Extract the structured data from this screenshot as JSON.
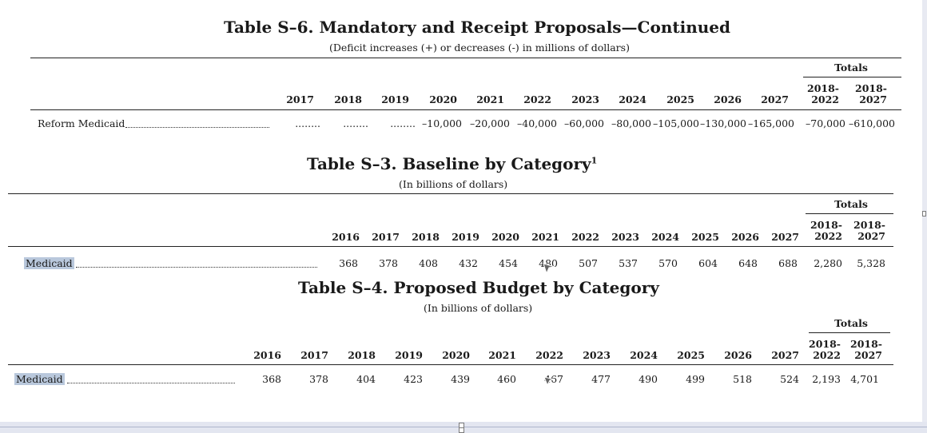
{
  "s6": {
    "title": "Table S–6.   Mandatory and Receipt Proposals—Continued",
    "subtitle": "(Deficit increases (+) or decreases (-) in millions of dollars)",
    "totals_label": "Totals",
    "years": [
      "2017",
      "2018",
      "2019",
      "2020",
      "2021",
      "2022",
      "2023",
      "2024",
      "2025",
      "2026",
      "2027"
    ],
    "totals_cols": [
      [
        "2018-",
        "2022"
      ],
      [
        "2018-",
        "2027"
      ]
    ],
    "row_label": "Reform Medicaid",
    "values": [
      "........",
      "........",
      "........",
      "–10,000",
      "–20,000",
      "–40,000",
      "–60,000",
      "–80,000",
      "–105,000",
      "–130,000",
      "–165,000",
      "–70,000",
      "–610,000"
    ]
  },
  "s3": {
    "title": "Table S–3.   Baseline by Category",
    "title_sup": "1",
    "subtitle": "(In billions of dollars)",
    "totals_label": "Totals",
    "years": [
      "2016",
      "2017",
      "2018",
      "2019",
      "2020",
      "2021",
      "2022",
      "2023",
      "2024",
      "2025",
      "2026",
      "2027"
    ],
    "totals_cols": [
      [
        "2018-",
        "2022"
      ],
      [
        "2018-",
        "2027"
      ]
    ],
    "row_label": "Medicaid",
    "values": [
      "368",
      "378",
      "408",
      "432",
      "454",
      "480",
      "507",
      "537",
      "570",
      "604",
      "648",
      "688",
      "2,280",
      "5,328"
    ]
  },
  "s4": {
    "title": "Table S–4.   Proposed Budget by Category",
    "subtitle": "(In billions of dollars)",
    "totals_label": "Totals",
    "years": [
      "2016",
      "2017",
      "2018",
      "2019",
      "2020",
      "2021",
      "2022",
      "2023",
      "2024",
      "2025",
      "2026",
      "2027"
    ],
    "totals_cols": [
      [
        "2018-",
        "2022"
      ],
      [
        "2018-",
        "2027"
      ]
    ],
    "row_label": "Medicaid",
    "values": [
      "368",
      "378",
      "404",
      "423",
      "439",
      "460",
      "467",
      "477",
      "490",
      "499",
      "518",
      "524",
      "2,193",
      "4,701"
    ]
  }
}
